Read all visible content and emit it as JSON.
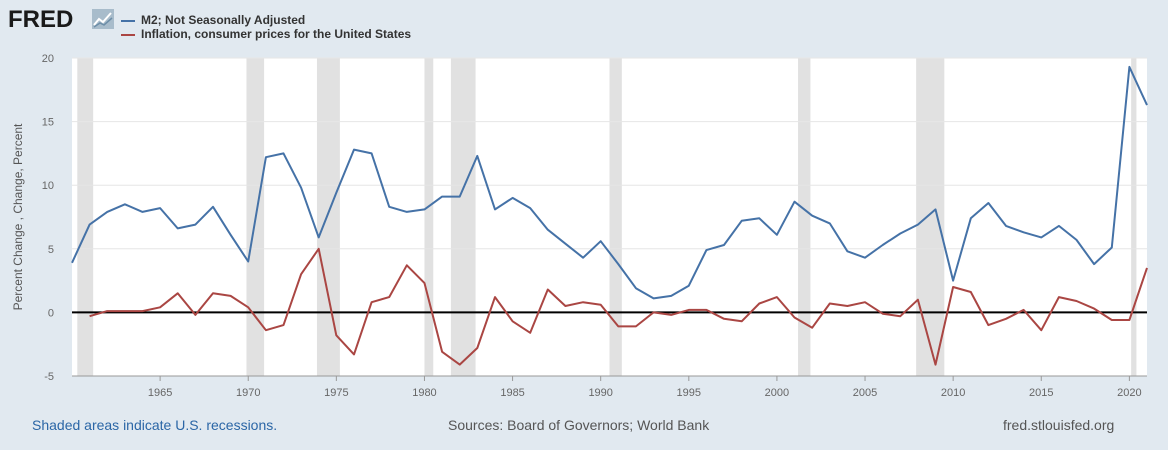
{
  "brand": {
    "logo_text": "FRED"
  },
  "footer": {
    "recession_note": "Shaded areas indicate U.S. recessions.",
    "sources": "Sources: Board of Governors; World Bank",
    "site": "fred.stlouisfed.org"
  },
  "chart_data": {
    "type": "line",
    "ylabel": "Percent Change , Change, Percent",
    "xlim": [
      1960,
      2021
    ],
    "ylim": [
      -5,
      20
    ],
    "yticks": [
      -5,
      0,
      5,
      10,
      15,
      20
    ],
    "xticks": [
      1965,
      1970,
      1975,
      1980,
      1985,
      1990,
      1995,
      2000,
      2005,
      2010,
      2015,
      2020
    ],
    "grid": true,
    "legend_position": "top-left",
    "zero_line": true,
    "recessions": [
      [
        1960.3,
        1961.2
      ],
      [
        1969.9,
        1970.9
      ],
      [
        1973.9,
        1975.2
      ],
      [
        1980.0,
        1980.5
      ],
      [
        1981.5,
        1982.9
      ],
      [
        1990.5,
        1991.2
      ],
      [
        2001.2,
        2001.9
      ],
      [
        2007.9,
        2009.5
      ],
      [
        2020.1,
        2020.4
      ]
    ],
    "colors": {
      "m2": "#4572a7",
      "inflation": "#aa4643",
      "recession": "#e1e1e1",
      "grid": "#e6e6e6",
      "zero_line": "#000000"
    },
    "series": [
      {
        "name": "M2; Not Seasonally Adjusted",
        "x": [
          1960,
          1961,
          1962,
          1963,
          1964,
          1965,
          1966,
          1967,
          1968,
          1969,
          1970,
          1971,
          1972,
          1973,
          1974,
          1975,
          1976,
          1977,
          1978,
          1979,
          1980,
          1981,
          1982,
          1983,
          1984,
          1985,
          1986,
          1987,
          1988,
          1989,
          1990,
          1991,
          1992,
          1993,
          1994,
          1995,
          1996,
          1997,
          1998,
          1999,
          2000,
          2001,
          2002,
          2003,
          2004,
          2005,
          2006,
          2007,
          2008,
          2009,
          2010,
          2011,
          2012,
          2013,
          2014,
          2015,
          2016,
          2017,
          2018,
          2019,
          2020,
          2021
        ],
        "values": [
          3.9,
          6.9,
          7.9,
          8.5,
          7.9,
          8.2,
          6.6,
          6.9,
          8.3,
          6.1,
          4.0,
          12.2,
          12.5,
          9.8,
          5.9,
          9.4,
          12.8,
          12.5,
          8.3,
          7.9,
          8.1,
          9.1,
          9.1,
          12.3,
          8.1,
          9.0,
          8.2,
          6.5,
          5.4,
          4.3,
          5.6,
          3.8,
          1.9,
          1.1,
          1.3,
          2.1,
          4.9,
          5.3,
          7.2,
          7.4,
          6.1,
          8.7,
          7.6,
          7.0,
          4.8,
          4.3,
          5.3,
          6.2,
          6.9,
          8.1,
          2.5,
          7.4,
          8.6,
          6.8,
          6.3,
          5.9,
          6.8,
          5.7,
          3.8,
          5.1,
          19.3,
          16.3
        ]
      },
      {
        "name": "Inflation, consumer prices for the United States",
        "x": [
          1961,
          1962,
          1963,
          1964,
          1965,
          1966,
          1967,
          1968,
          1969,
          1970,
          1971,
          1972,
          1973,
          1974,
          1975,
          1976,
          1977,
          1978,
          1979,
          1980,
          1981,
          1982,
          1983,
          1984,
          1985,
          1986,
          1987,
          1988,
          1989,
          1990,
          1991,
          1992,
          1993,
          1994,
          1995,
          1996,
          1997,
          1998,
          1999,
          2000,
          2001,
          2002,
          2003,
          2004,
          2005,
          2006,
          2007,
          2008,
          2009,
          2010,
          2011,
          2012,
          2013,
          2014,
          2015,
          2016,
          2017,
          2018,
          2019,
          2020,
          2021
        ],
        "values": [
          -0.3,
          0.1,
          0.1,
          0.1,
          0.4,
          1.5,
          -0.2,
          1.5,
          1.3,
          0.4,
          -1.4,
          -1.0,
          3.0,
          5.0,
          -1.8,
          -3.3,
          0.8,
          1.2,
          3.7,
          2.3,
          -3.1,
          -4.1,
          -2.8,
          1.2,
          -0.7,
          -1.6,
          1.8,
          0.5,
          0.8,
          0.6,
          -1.1,
          -1.1,
          0.0,
          -0.2,
          0.2,
          0.2,
          -0.5,
          -0.7,
          0.7,
          1.2,
          -0.4,
          -1.2,
          0.7,
          0.5,
          0.8,
          -0.1,
          -0.3,
          1.0,
          -4.1,
          2.0,
          1.6,
          -1.0,
          -0.5,
          0.2,
          -1.4,
          1.2,
          0.9,
          0.3,
          -0.6,
          -0.6,
          3.5
        ]
      }
    ]
  }
}
